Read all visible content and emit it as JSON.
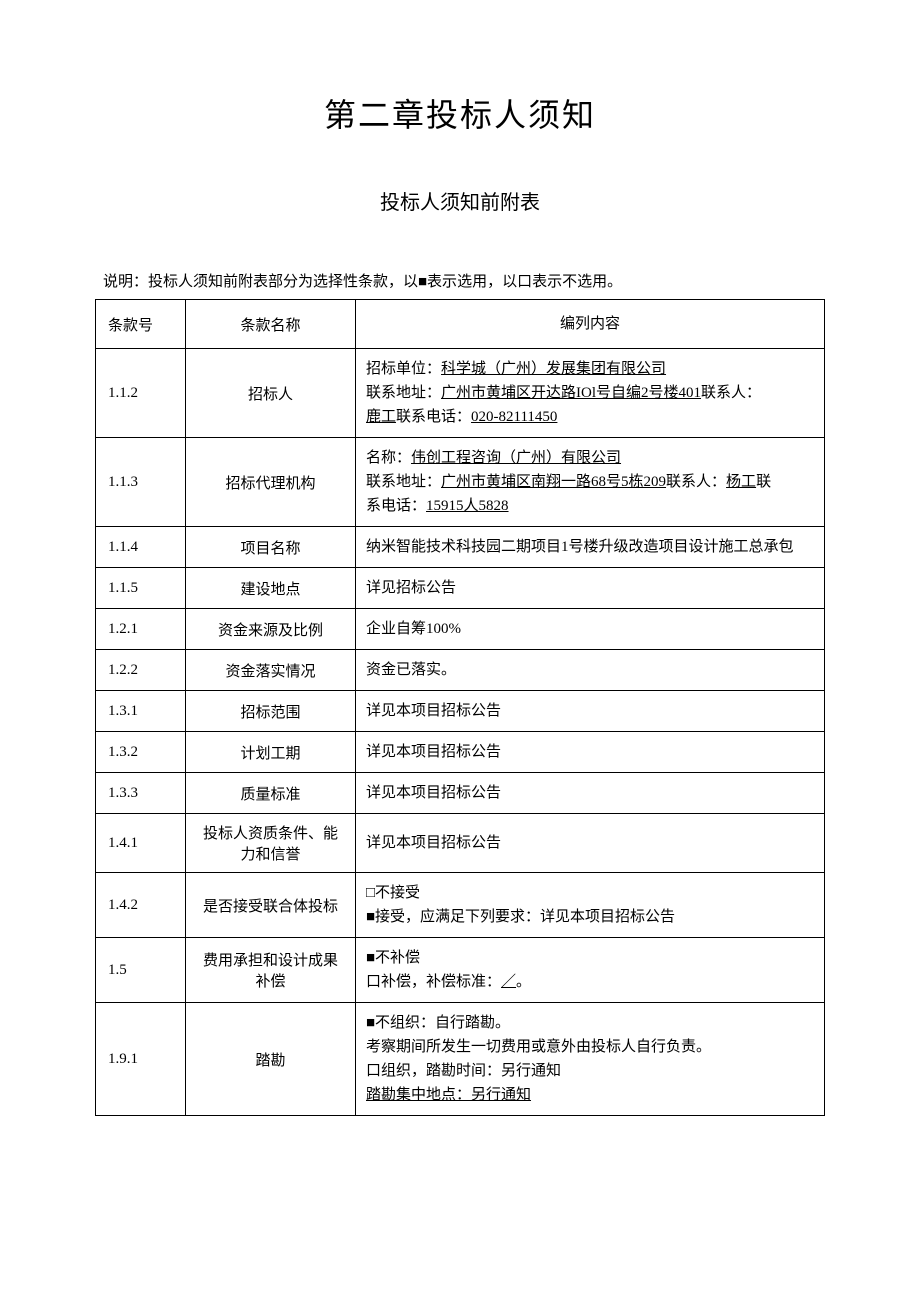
{
  "chapter_title": "第二章投标人须知",
  "section_title": "投标人须知前附表",
  "explanation": "说明：投标人须知前附表部分为选择性条款，以■表示选用，以口表示不选用。",
  "table": {
    "headers": {
      "num": "条款号",
      "name": "条款名称",
      "content": "编列内容"
    },
    "rows": [
      {
        "num": "1.1.2",
        "name": "招标人",
        "content": {
          "line1_prefix": "招标单位：",
          "line1_underline": "科学城（广州）发展集团有限公司",
          "line2_prefix": "联系地址：",
          "line2_underline": "广州市黄埔区开达路IOl号自编2号楼401",
          "line2_suffix": "联系人：",
          "line3_prefix": "鹿工",
          "line3_mid": "联系电话：",
          "line3_underline": "020-82111450"
        }
      },
      {
        "num": "1.1.3",
        "name": "招标代理机构",
        "content": {
          "line1_prefix": "名称：",
          "line1_underline": "伟创工程咨询（广州）有限公司",
          "line2_prefix": "联系地址：",
          "line2_underline": "广州市黄埔区南翔一路68号5栋209",
          "line2_mid": "联系人：",
          "line2_underline2": "杨工",
          "line2_suffix": "联",
          "line3_prefix": "系电话：",
          "line3_underline": "15915人5828"
        }
      },
      {
        "num": "1.1.4",
        "name": "项目名称",
        "content_text": "纳米智能技术科技园二期项目1号楼升级改造项目设计施工总承包"
      },
      {
        "num": "1.1.5",
        "name": "建设地点",
        "content_text": "详见招标公告"
      },
      {
        "num": "1.2.1",
        "name": "资金来源及比例",
        "content_text": "企业自筹100%"
      },
      {
        "num": "1.2.2",
        "name": "资金落实情况",
        "content_text": "资金已落实。"
      },
      {
        "num": "1.3.1",
        "name": "招标范围",
        "content_text": "详见本项目招标公告"
      },
      {
        "num": "1.3.2",
        "name": "计划工期",
        "content_text": "详见本项目招标公告"
      },
      {
        "num": "1.3.3",
        "name": "质量标准",
        "content_text": "详见本项目招标公告"
      },
      {
        "num": "1.4.1",
        "name": "投标人资质条件、能力和信誉",
        "content_text": "详见本项目招标公告"
      },
      {
        "num": "1.4.2",
        "name": "是否接受联合体投标",
        "content": {
          "line1": "□不接受",
          "line2": "■接受，应满足下列要求：详见本项目招标公告"
        }
      },
      {
        "num": "1.5",
        "name": "费用承担和设计成果补偿",
        "content": {
          "line1": "■不补偿",
          "line2_prefix": "口补偿，补偿标准：",
          "line2_underline": "／",
          "line2_suffix": "。"
        }
      },
      {
        "num": "1.9.1",
        "name": "踏勘",
        "content": {
          "line1": "■不组织：自行踏勘。",
          "line2": "考察期间所发生一切费用或意外由投标人自行负责。",
          "line3": "口组织，踏勘时间：另行通知",
          "line4": "踏勘集中地点：另行通知"
        }
      }
    ]
  }
}
